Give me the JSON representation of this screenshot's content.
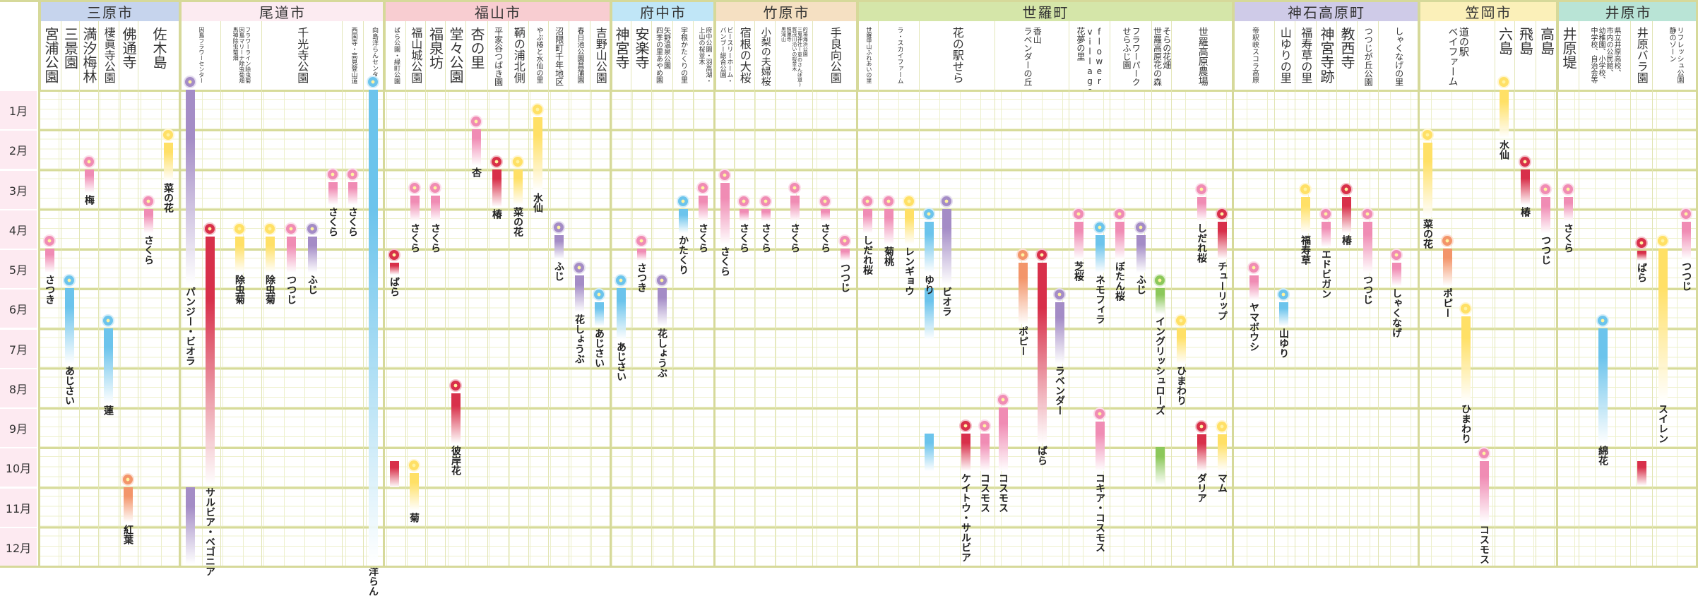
{
  "chart_data": {
    "type": "table",
    "title": "",
    "months": [
      "1月",
      "2月",
      "3月",
      "4月",
      "5月",
      "6月",
      "7月",
      "8月",
      "9月",
      "10月",
      "11月",
      "12月"
    ],
    "colors": {
      "pink": "#f08cb4",
      "red": "#d8304a",
      "yellow": "#ffe066",
      "blue": "#6cc4ec",
      "purple": "#a48cc6",
      "orange": "#f3956a",
      "green": "#8cc85a"
    },
    "regions": [
      {
        "name": "三原市",
        "color": "#c6d4ed",
        "places": [
          {
            "lines": [
              "宮浦公園"
            ]
          },
          {
            "lines": [
              "三景園"
            ]
          },
          {
            "lines": [
              "満汐梅林"
            ]
          },
          {
            "lines": [
              "棲眞寺公園"
            ]
          },
          {
            "lines": [
              "佛通寺"
            ]
          },
          {
            "lines": [
              "佐木島"
            ]
          }
        ]
      },
      {
        "name": "尾道市",
        "color": "#fcebf1",
        "places": [
          {
            "lines": [
              "因島フラワーセンター"
            ]
          },
          {
            "lines": [
              "フラワーライン除虫菊",
              "因島マリーナ除虫菊畑",
              "馬神除虫菊畑"
            ]
          },
          {
            "lines": [
              "千光寺公園"
            ]
          },
          {
            "lines": [
              "西国寺・高見登山道"
            ]
          },
          {
            "lines": [
              "向島洋らんセンター"
            ]
          }
        ]
      },
      {
        "name": "福山市",
        "color": "#f8cdd1",
        "places": [
          {
            "lines": [
              "ばら公園・緑町公園"
            ]
          },
          {
            "lines": [
              "福山城公園"
            ]
          },
          {
            "lines": [
              "福泉坊"
            ]
          },
          {
            "lines": [
              "堂々公園"
            ]
          },
          {
            "lines": [
              "杏の里"
            ]
          },
          {
            "lines": [
              "平家谷つばき園"
            ]
          },
          {
            "lines": [
              "鞆の浦北側"
            ]
          },
          {
            "lines": [
              "やぶ椿と水仙の里"
            ]
          },
          {
            "lines": [
              "沼隈町千年地区"
            ]
          },
          {
            "lines": [
              "春日池公園菖蒲園"
            ]
          },
          {
            "lines": [
              "吉野山公園"
            ]
          }
        ]
      },
      {
        "name": "府中市",
        "color": "#c0e6f7",
        "places": [
          {
            "lines": [
              "神宮寺"
            ]
          },
          {
            "lines": [
              "安楽寺"
            ]
          },
          {
            "lines": [
              "矢野温泉公園",
              "四季の里あやめ園"
            ]
          },
          {
            "lines": [
              "宇根かたくりの里"
            ]
          },
          {
            "lines": [
              "府中公園・羽高湖・",
              "上山の桜並木"
            ]
          }
        ]
      },
      {
        "name": "竹原市",
        "color": "#f5e0c2",
        "places": [
          {
            "lines": [
              "ビースリーホーム・",
              "バンブー総合公園"
            ]
          },
          {
            "lines": [
              "宿根の大桜"
            ]
          },
          {
            "lines": [
              "小梨の夫婦桜"
            ]
          },
          {
            "lines": [
              "的場海浜公園",
              "三鬼神社(恵のさんぽ道)",
              "賀茂川沿いの桜並木",
              "照蓮寺",
              "黒滝山"
            ]
          },
          {
            "lines": [
              "手良向公園"
            ]
          }
        ]
      },
      {
        "name": "世羅町",
        "color": "#d5e6a9",
        "places": [
          {
            "lines": [
              "世羅甲山ふれあいの里"
            ]
          },
          {
            "lines": [
              "ラ・スカイファーム"
            ]
          },
          {
            "lines": [
              "花の駅せら"
            ]
          },
          {
            "lines": [
              "香山",
              "ラベンダーの丘"
            ]
          },
          {
            "lines": [
              "flower",
              "village",
              "花夢の里"
            ]
          },
          {
            "lines": [
              "フラワーパーク",
              "せらふじ園"
            ]
          },
          {
            "lines": [
              "そらの花畑",
              "世羅高原花の森"
            ]
          },
          {
            "lines": [
              "世羅高原農場"
            ]
          }
        ]
      },
      {
        "name": "神石高原町",
        "color": "#cfcbe8",
        "places": [
          {
            "lines": [
              "帝釈峡スコラ高原"
            ]
          },
          {
            "lines": [
              "山ゆりの里"
            ]
          },
          {
            "lines": [
              "福寿草の里"
            ]
          },
          {
            "lines": [
              "神宮寺跡"
            ]
          },
          {
            "lines": [
              "教西寺"
            ]
          },
          {
            "lines": [
              "つつじが丘公園"
            ]
          },
          {
            "lines": [
              "しゃくなげの里"
            ]
          }
        ]
      },
      {
        "name": "笠岡市",
        "color": "#fbf0b9",
        "places": [
          {
            "lines": [
              "道の駅",
              "ベイファーム"
            ]
          },
          {
            "lines": [
              "六島"
            ]
          },
          {
            "lines": [
              "飛島"
            ]
          },
          {
            "lines": [
              "高島"
            ]
          }
        ]
      },
      {
        "name": "井原市",
        "color": "#b9e4d6",
        "places": [
          {
            "lines": [
              "井原堤"
            ]
          },
          {
            "lines": [
              "県立井原高校、",
              "市内の公民館、",
              "幼稚園、小学校、",
              "中学校、自治会等"
            ]
          },
          {
            "lines": [
              "井原バラ園"
            ]
          },
          {
            "lines": [
              "リフレッシュ公園",
              "静のゾーン"
            ]
          }
        ]
      }
    ],
    "flowers": [
      {
        "name": "さつき",
        "color": "pink",
        "periods": [
          [
            5.0,
            5.6
          ]
        ]
      },
      {
        "name": "あじさい",
        "color": "blue",
        "periods": [
          [
            6.0,
            7.9
          ]
        ]
      },
      {
        "name": "梅",
        "color": "pink",
        "periods": [
          [
            3.0,
            3.6
          ]
        ]
      },
      {
        "name": "蓮",
        "color": "blue",
        "periods": [
          [
            7.0,
            8.9
          ]
        ]
      },
      {
        "name": "紅葉",
        "color": "orange",
        "periods": [
          [
            11.0,
            11.9
          ]
        ]
      },
      {
        "name": "さくら",
        "color": "pink",
        "periods": [
          [
            4.0,
            4.6
          ]
        ]
      },
      {
        "name": "菜の花",
        "color": "yellow",
        "periods": [
          [
            2.33,
            3.3
          ]
        ]
      },
      {
        "name": "パンジー・ビオラ",
        "color": "purple",
        "periods": [
          [
            1.0,
            5.9
          ],
          [
            11.0,
            12.95
          ]
        ]
      },
      {
        "name": "サルビア・ベゴニア",
        "color": "red",
        "periods": [
          [
            4.7,
            10.95
          ]
        ]
      },
      {
        "name": "除虫菊",
        "color": "yellow",
        "periods": [
          [
            4.7,
            5.6
          ]
        ]
      },
      {
        "name": "除虫菊",
        "color": "yellow",
        "periods": [
          [
            4.7,
            5.6
          ]
        ]
      },
      {
        "name": "つつじ",
        "color": "pink",
        "periods": [
          [
            4.7,
            5.6
          ]
        ]
      },
      {
        "name": "ふじ",
        "color": "purple",
        "periods": [
          [
            4.7,
            5.6
          ]
        ]
      },
      {
        "name": "さくら",
        "color": "pink",
        "periods": [
          [
            3.33,
            3.9
          ]
        ]
      },
      {
        "name": "さくら",
        "color": "pink",
        "periods": [
          [
            3.33,
            3.9
          ]
        ]
      },
      {
        "name": "洋らん",
        "color": "blue",
        "periods": [
          [
            1.0,
            12.95
          ]
        ]
      },
      {
        "name": "ばら",
        "color": "red",
        "periods": [
          [
            5.35,
            5.65
          ],
          [
            10.35,
            11.0
          ]
        ]
      },
      {
        "name": "さくら",
        "color": "pink",
        "periods": [
          [
            3.67,
            4.3
          ]
        ]
      },
      {
        "name": "菊",
        "color": "yellow",
        "periods": [
          [
            10.66,
            11.6
          ]
        ]
      },
      {
        "name": "さくら",
        "color": "pink",
        "periods": [
          [
            3.67,
            4.3
          ]
        ]
      },
      {
        "name": "彼岸花",
        "color": "red",
        "periods": [
          [
            8.65,
            9.9
          ]
        ]
      },
      {
        "name": "杏",
        "color": "pink",
        "periods": [
          [
            2.0,
            2.9
          ]
        ]
      },
      {
        "name": "椿",
        "color": "red",
        "periods": [
          [
            3.0,
            3.95
          ]
        ]
      },
      {
        "name": "菜の花",
        "color": "yellow",
        "periods": [
          [
            3.0,
            3.9
          ]
        ]
      },
      {
        "name": "水仙",
        "color": "yellow",
        "periods": [
          [
            1.7,
            3.55
          ]
        ]
      },
      {
        "name": "ふじ",
        "color": "purple",
        "periods": [
          [
            4.67,
            5.27
          ]
        ]
      },
      {
        "name": "花しょうぶ",
        "color": "purple",
        "periods": [
          [
            5.67,
            6.6
          ]
        ]
      },
      {
        "name": "あじさい",
        "color": "blue",
        "periods": [
          [
            6.35,
            6.95
          ]
        ]
      },
      {
        "name": "あじさい",
        "color": "blue",
        "periods": [
          [
            6.0,
            7.3
          ]
        ]
      },
      {
        "name": "さつき",
        "color": "pink",
        "periods": [
          [
            5.0,
            5.3
          ]
        ]
      },
      {
        "name": "花しょうぶ",
        "color": "purple",
        "periods": [
          [
            6.0,
            6.95
          ]
        ]
      },
      {
        "name": "かたくり",
        "color": "blue",
        "periods": [
          [
            4.0,
            4.6
          ]
        ]
      },
      {
        "name": "さくら",
        "color": "pink",
        "periods": [
          [
            3.67,
            4.3
          ]
        ]
      },
      {
        "name": "さくら",
        "color": "pink",
        "periods": [
          [
            3.35,
            4.9
          ]
        ]
      },
      {
        "name": "さくら",
        "color": "pink",
        "periods": [
          [
            4.0,
            4.3
          ]
        ]
      },
      {
        "name": "さくら",
        "color": "pink",
        "periods": [
          [
            4.0,
            4.3
          ]
        ]
      },
      {
        "name": "さくら",
        "color": "pink",
        "periods": [
          [
            3.67,
            4.3
          ]
        ]
      },
      {
        "name": "さくら",
        "color": "pink",
        "periods": [
          [
            4.0,
            4.3
          ]
        ]
      },
      {
        "name": "つつじ",
        "color": "pink",
        "periods": [
          [
            5.0,
            5.3
          ]
        ]
      },
      {
        "name": "しだれ桜",
        "color": "pink",
        "periods": [
          [
            4.0,
            4.6
          ]
        ]
      },
      {
        "name": "菊桃",
        "color": "pink",
        "periods": [
          [
            4.0,
            4.9
          ]
        ]
      },
      {
        "name": "レンギョウ",
        "color": "yellow",
        "periods": [
          [
            4.0,
            4.9
          ]
        ]
      },
      {
        "name": "ゆり",
        "color": "blue",
        "periods": [
          [
            4.33,
            5.6
          ],
          [
            6.0,
            7.3
          ],
          [
            9.66,
            10.6
          ]
        ]
      },
      {
        "name": "ビオラ",
        "color": "purple",
        "periods": [
          [
            4.0,
            5.9
          ]
        ]
      },
      {
        "name": "ケイトウ・サルビア",
        "color": "red",
        "periods": [
          [
            9.66,
            10.6
          ]
        ]
      },
      {
        "name": "コスモス",
        "color": "pink",
        "periods": [
          [
            9.66,
            10.6
          ]
        ]
      },
      {
        "name": "コスモス",
        "color": "pink",
        "periods": [
          [
            9.0,
            10.6
          ]
        ]
      },
      {
        "name": "ポピー",
        "color": "orange",
        "periods": [
          [
            5.35,
            6.9
          ]
        ]
      },
      {
        "name": "ばら",
        "color": "red",
        "periods": [
          [
            5.35,
            9.9
          ]
        ]
      },
      {
        "name": "ラベンダー",
        "color": "purple",
        "periods": [
          [
            6.35,
            7.9
          ]
        ]
      },
      {
        "name": "芝桜",
        "color": "pink",
        "periods": [
          [
            4.33,
            5.27
          ]
        ]
      },
      {
        "name": "ネモフィラ",
        "color": "blue",
        "periods": [
          [
            4.67,
            5.6
          ]
        ]
      },
      {
        "name": "コキア・コスモス",
        "color": "pink",
        "periods": [
          [
            9.35,
            10.6
          ]
        ]
      },
      {
        "name": "ぼたん桜",
        "color": "pink",
        "periods": [
          [
            4.33,
            5.27
          ]
        ]
      },
      {
        "name": "ふじ",
        "color": "purple",
        "periods": [
          [
            4.67,
            5.6
          ]
        ]
      },
      {
        "name": "イングリッシュローズ",
        "color": "green",
        "periods": [
          [
            6.0,
            6.65
          ],
          [
            10.0,
            10.95
          ]
        ]
      },
      {
        "name": "ひまわり",
        "color": "yellow",
        "periods": [
          [
            7.0,
            7.9
          ]
        ]
      },
      {
        "name": "しだれ桜",
        "color": "pink",
        "periods": [
          [
            3.7,
            4.3
          ]
        ]
      },
      {
        "name": "ダリア",
        "color": "red",
        "periods": [
          [
            9.68,
            10.6
          ]
        ]
      },
      {
        "name": "チューリップ",
        "color": "red",
        "periods": [
          [
            4.33,
            5.27
          ]
        ]
      },
      {
        "name": "マム",
        "color": "yellow",
        "periods": [
          [
            9.68,
            10.6
          ]
        ]
      },
      {
        "name": "ヤマボウシ",
        "color": "pink",
        "periods": [
          [
            5.67,
            6.3
          ]
        ]
      },
      {
        "name": "山ゆり",
        "color": "blue",
        "periods": [
          [
            6.35,
            6.95
          ]
        ]
      },
      {
        "name": "福寿草",
        "color": "yellow",
        "periods": [
          [
            3.7,
            4.6
          ]
        ]
      },
      {
        "name": "エドビガン",
        "color": "pink",
        "periods": [
          [
            4.33,
            4.96
          ]
        ]
      },
      {
        "name": "椿",
        "color": "red",
        "periods": [
          [
            3.7,
            4.6
          ]
        ]
      },
      {
        "name": "つつじ",
        "color": "pink",
        "periods": [
          [
            4.33,
            5.6
          ]
        ]
      },
      {
        "name": "しゃくなげ",
        "color": "pink",
        "periods": [
          [
            5.35,
            5.95
          ]
        ]
      },
      {
        "name": "菜の花",
        "color": "yellow",
        "periods": [
          [
            2.33,
            4.2
          ]
        ]
      },
      {
        "name": "ポピー",
        "color": "orange",
        "periods": [
          [
            5.0,
            5.95
          ]
        ]
      },
      {
        "name": "ひまわり",
        "color": "yellow",
        "periods": [
          [
            6.7,
            8.85
          ]
        ]
      },
      {
        "name": "コスモス",
        "color": "pink",
        "periods": [
          [
            10.35,
            11.9
          ]
        ]
      },
      {
        "name": "水仙",
        "color": "yellow",
        "periods": [
          [
            1.0,
            2.2
          ]
        ]
      },
      {
        "name": "椿",
        "color": "red",
        "periods": [
          [
            3.0,
            3.9
          ]
        ]
      },
      {
        "name": "つつじ",
        "color": "pink",
        "periods": [
          [
            3.7,
            4.6
          ]
        ]
      },
      {
        "name": "さくら",
        "color": "pink",
        "periods": [
          [
            3.7,
            4.3
          ]
        ]
      },
      {
        "name": "綿花",
        "color": "blue",
        "periods": [
          [
            7.0,
            9.9
          ]
        ]
      },
      {
        "name": "ばら",
        "color": "red",
        "periods": [
          [
            5.05,
            5.3
          ],
          [
            10.35,
            10.97
          ]
        ]
      },
      {
        "name": "スイレン",
        "color": "yellow",
        "periods": [
          [
            5.0,
            8.85
          ]
        ]
      },
      {
        "name": "つつじ",
        "color": "pink",
        "periods": [
          [
            4.33,
            5.27
          ]
        ]
      }
    ]
  }
}
